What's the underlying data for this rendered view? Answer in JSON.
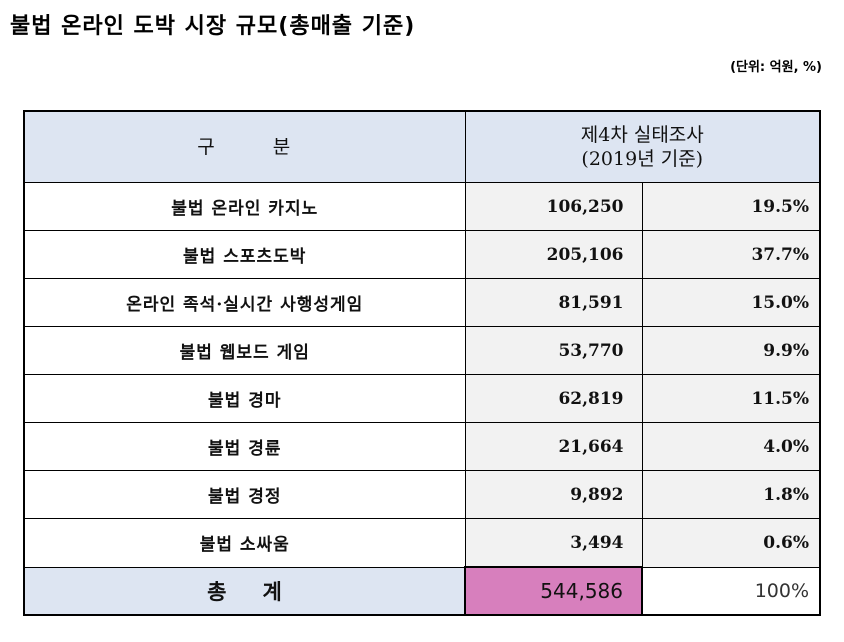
{
  "title": "불법 온라인 도박 시장 규모(총매출 기준)",
  "unit": "(단위: 억원, %)",
  "header": {
    "col1_a": "구",
    "col1_b": "분",
    "col2_line1": "제4차 실태조사",
    "col2_line2": "(2019년 기준)"
  },
  "rows": [
    {
      "category": "불법 온라인 카지노",
      "value": "106,250",
      "percent": "19.5%"
    },
    {
      "category": "불법 스포츠도박",
      "value": "205,106",
      "percent": "37.7%"
    },
    {
      "category": "온라인 족석·실시간 사행성게임",
      "value": "81,591",
      "percent": "15.0%"
    },
    {
      "category": "불법 웹보드 게임",
      "value": "53,770",
      "percent": "9.9%"
    },
    {
      "category": "불법 경마",
      "value": "62,819",
      "percent": "11.5%"
    },
    {
      "category": "불법 경륜",
      "value": "21,664",
      "percent": "4.0%"
    },
    {
      "category": "불법 경정",
      "value": "9,892",
      "percent": "1.8%"
    },
    {
      "category": "불법 소싸움",
      "value": "3,494",
      "percent": "0.6%"
    }
  ],
  "total": {
    "label_a": "총",
    "label_b": "계",
    "value": "544,586",
    "percent": "100%"
  },
  "colors": {
    "header_bg": "#dde5f2",
    "cell_bg": "#f2f2f2",
    "total_highlight": "#d77fbd"
  }
}
